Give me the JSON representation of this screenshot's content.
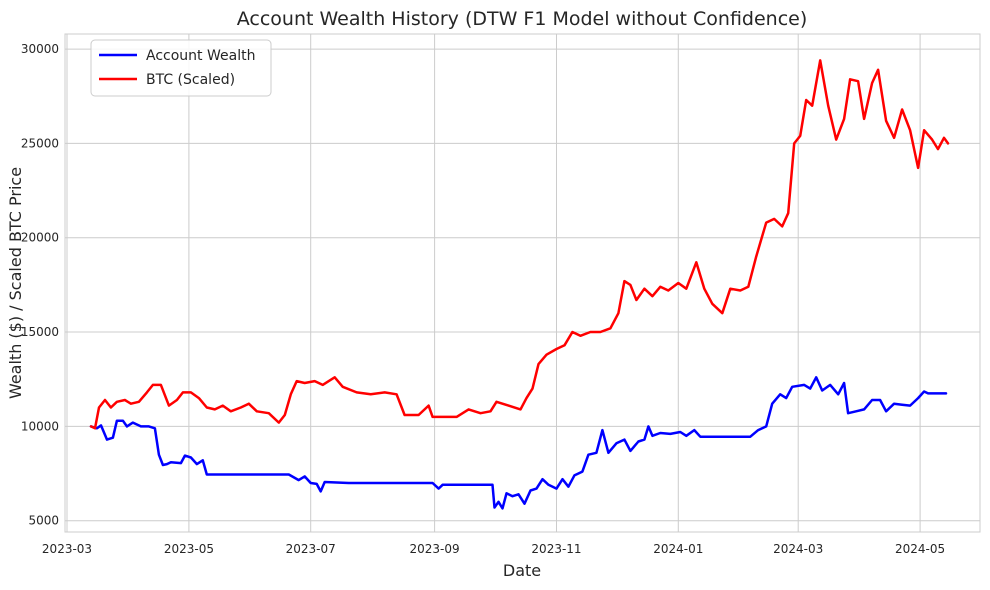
{
  "chart_data": {
    "type": "line",
    "title": "Account Wealth History (DTW F1 Model without Confidence)",
    "xlabel": "Date",
    "ylabel": "Wealth ($) / Scaled BTC Price",
    "x_range": [
      "2023-02-28",
      "2024-05-31"
    ],
    "ylim": [
      4400,
      30800
    ],
    "x_ticks": [
      "2023-03-01",
      "2023-05-01",
      "2023-07-01",
      "2023-09-01",
      "2023-11-01",
      "2024-01-01",
      "2024-03-01",
      "2024-05-01"
    ],
    "x_tick_labels": [
      "2023-03",
      "2023-05",
      "2023-07",
      "2023-09",
      "2023-11",
      "2024-01",
      "2024-03",
      "2024-05"
    ],
    "y_ticks": [
      5000,
      10000,
      15000,
      20000,
      25000,
      30000
    ],
    "y_tick_labels": [
      "5000",
      "10000",
      "15000",
      "20000",
      "25000",
      "30000"
    ],
    "grid": true,
    "legend_position": "top-left",
    "series": [
      {
        "name": "Account Wealth",
        "color": "#0000ff",
        "points": [
          [
            "2023-03-13",
            10000
          ],
          [
            "2023-03-16",
            9900
          ],
          [
            "2023-03-18",
            10050
          ],
          [
            "2023-03-21",
            9300
          ],
          [
            "2023-03-24",
            9400
          ],
          [
            "2023-03-26",
            10300
          ],
          [
            "2023-03-29",
            10300
          ],
          [
            "2023-03-31",
            10000
          ],
          [
            "2023-04-03",
            10200
          ],
          [
            "2023-04-07",
            10000
          ],
          [
            "2023-04-11",
            10000
          ],
          [
            "2023-04-14",
            9900
          ],
          [
            "2023-04-16",
            8500
          ],
          [
            "2023-04-18",
            7950
          ],
          [
            "2023-04-20",
            8000
          ],
          [
            "2023-04-22",
            8100
          ],
          [
            "2023-04-27",
            8050
          ],
          [
            "2023-04-29",
            8450
          ],
          [
            "2023-05-02",
            8350
          ],
          [
            "2023-05-05",
            8000
          ],
          [
            "2023-05-08",
            8200
          ],
          [
            "2023-05-10",
            7450
          ],
          [
            "2023-06-20",
            7450
          ],
          [
            "2023-06-25",
            7150
          ],
          [
            "2023-06-28",
            7350
          ],
          [
            "2023-07-01",
            7000
          ],
          [
            "2023-07-04",
            6950
          ],
          [
            "2023-07-06",
            6550
          ],
          [
            "2023-07-08",
            7050
          ],
          [
            "2023-07-20",
            7000
          ],
          [
            "2023-08-31",
            7000
          ],
          [
            "2023-09-03",
            6700
          ],
          [
            "2023-09-05",
            6900
          ],
          [
            "2023-09-30",
            6900
          ],
          [
            "2023-10-01",
            5700
          ],
          [
            "2023-10-03",
            6000
          ],
          [
            "2023-10-05",
            5650
          ],
          [
            "2023-10-07",
            6450
          ],
          [
            "2023-10-10",
            6300
          ],
          [
            "2023-10-13",
            6400
          ],
          [
            "2023-10-16",
            5900
          ],
          [
            "2023-10-19",
            6600
          ],
          [
            "2023-10-22",
            6700
          ],
          [
            "2023-10-25",
            7200
          ],
          [
            "2023-10-28",
            6900
          ],
          [
            "2023-11-01",
            6700
          ],
          [
            "2023-11-04",
            7200
          ],
          [
            "2023-11-07",
            6800
          ],
          [
            "2023-11-10",
            7400
          ],
          [
            "2023-11-14",
            7600
          ],
          [
            "2023-11-17",
            8500
          ],
          [
            "2023-11-21",
            8600
          ],
          [
            "2023-11-24",
            9800
          ],
          [
            "2023-11-27",
            8600
          ],
          [
            "2023-12-01",
            9100
          ],
          [
            "2023-12-05",
            9300
          ],
          [
            "2023-12-08",
            8700
          ],
          [
            "2023-12-12",
            9200
          ],
          [
            "2023-12-15",
            9300
          ],
          [
            "2023-12-17",
            10000
          ],
          [
            "2023-12-19",
            9500
          ],
          [
            "2023-12-23",
            9650
          ],
          [
            "2023-12-28",
            9600
          ],
          [
            "2024-01-02",
            9700
          ],
          [
            "2024-01-05",
            9500
          ],
          [
            "2024-01-09",
            9800
          ],
          [
            "2024-01-12",
            9450
          ],
          [
            "2024-02-06",
            9450
          ],
          [
            "2024-02-10",
            9800
          ],
          [
            "2024-02-14",
            10000
          ],
          [
            "2024-02-17",
            11200
          ],
          [
            "2024-02-21",
            11700
          ],
          [
            "2024-02-24",
            11500
          ],
          [
            "2024-02-27",
            12100
          ],
          [
            "2024-03-04",
            12200
          ],
          [
            "2024-03-07",
            12000
          ],
          [
            "2024-03-10",
            12600
          ],
          [
            "2024-03-13",
            11900
          ],
          [
            "2024-03-17",
            12200
          ],
          [
            "2024-03-21",
            11700
          ],
          [
            "2024-03-24",
            12300
          ],
          [
            "2024-03-26",
            10700
          ],
          [
            "2024-03-30",
            10800
          ],
          [
            "2024-04-03",
            10900
          ],
          [
            "2024-04-07",
            11400
          ],
          [
            "2024-04-11",
            11400
          ],
          [
            "2024-04-14",
            10800
          ],
          [
            "2024-04-18",
            11200
          ],
          [
            "2024-04-22",
            11150
          ],
          [
            "2024-04-26",
            11100
          ],
          [
            "2024-04-30",
            11500
          ],
          [
            "2024-05-03",
            11850
          ],
          [
            "2024-05-05",
            11750
          ],
          [
            "2024-05-14",
            11750
          ]
        ]
      },
      {
        "name": "BTC (Scaled)",
        "color": "#ff0000",
        "points": [
          [
            "2023-03-13",
            10000
          ],
          [
            "2023-03-15",
            9900
          ],
          [
            "2023-03-17",
            11000
          ],
          [
            "2023-03-20",
            11400
          ],
          [
            "2023-03-23",
            11000
          ],
          [
            "2023-03-26",
            11300
          ],
          [
            "2023-03-30",
            11400
          ],
          [
            "2023-04-02",
            11200
          ],
          [
            "2023-04-06",
            11300
          ],
          [
            "2023-04-10",
            11800
          ],
          [
            "2023-04-13",
            12200
          ],
          [
            "2023-04-17",
            12200
          ],
          [
            "2023-04-21",
            11100
          ],
          [
            "2023-04-25",
            11400
          ],
          [
            "2023-04-28",
            11800
          ],
          [
            "2023-05-02",
            11800
          ],
          [
            "2023-05-06",
            11500
          ],
          [
            "2023-05-10",
            11000
          ],
          [
            "2023-05-14",
            10900
          ],
          [
            "2023-05-18",
            11100
          ],
          [
            "2023-05-22",
            10800
          ],
          [
            "2023-05-27",
            11000
          ],
          [
            "2023-05-31",
            11200
          ],
          [
            "2023-06-04",
            10800
          ],
          [
            "2023-06-10",
            10700
          ],
          [
            "2023-06-15",
            10200
          ],
          [
            "2023-06-18",
            10600
          ],
          [
            "2023-06-21",
            11700
          ],
          [
            "2023-06-24",
            12400
          ],
          [
            "2023-06-28",
            12300
          ],
          [
            "2023-07-03",
            12400
          ],
          [
            "2023-07-07",
            12200
          ],
          [
            "2023-07-13",
            12600
          ],
          [
            "2023-07-17",
            12100
          ],
          [
            "2023-07-24",
            11800
          ],
          [
            "2023-07-31",
            11700
          ],
          [
            "2023-08-07",
            11800
          ],
          [
            "2023-08-13",
            11700
          ],
          [
            "2023-08-17",
            10600
          ],
          [
            "2023-08-24",
            10600
          ],
          [
            "2023-08-29",
            11100
          ],
          [
            "2023-08-31",
            10500
          ],
          [
            "2023-09-07",
            10500
          ],
          [
            "2023-09-12",
            10500
          ],
          [
            "2023-09-18",
            10900
          ],
          [
            "2023-09-24",
            10700
          ],
          [
            "2023-09-29",
            10800
          ],
          [
            "2023-10-02",
            11300
          ],
          [
            "2023-10-08",
            11100
          ],
          [
            "2023-10-14",
            10900
          ],
          [
            "2023-10-17",
            11500
          ],
          [
            "2023-10-20",
            12000
          ],
          [
            "2023-10-23",
            13300
          ],
          [
            "2023-10-27",
            13800
          ],
          [
            "2023-11-01",
            14100
          ],
          [
            "2023-11-05",
            14300
          ],
          [
            "2023-11-09",
            15000
          ],
          [
            "2023-11-13",
            14800
          ],
          [
            "2023-11-18",
            15000
          ],
          [
            "2023-11-23",
            15000
          ],
          [
            "2023-11-28",
            15200
          ],
          [
            "2023-12-02",
            16000
          ],
          [
            "2023-12-05",
            17700
          ],
          [
            "2023-12-08",
            17500
          ],
          [
            "2023-12-11",
            16700
          ],
          [
            "2023-12-15",
            17300
          ],
          [
            "2023-12-19",
            16900
          ],
          [
            "2023-12-23",
            17400
          ],
          [
            "2023-12-27",
            17200
          ],
          [
            "2024-01-01",
            17600
          ],
          [
            "2024-01-05",
            17300
          ],
          [
            "2024-01-10",
            18700
          ],
          [
            "2024-01-14",
            17300
          ],
          [
            "2024-01-18",
            16500
          ],
          [
            "2024-01-23",
            16000
          ],
          [
            "2024-01-27",
            17300
          ],
          [
            "2024-02-01",
            17200
          ],
          [
            "2024-02-05",
            17400
          ],
          [
            "2024-02-09",
            19000
          ],
          [
            "2024-02-14",
            20800
          ],
          [
            "2024-02-18",
            21000
          ],
          [
            "2024-02-22",
            20600
          ],
          [
            "2024-02-25",
            21300
          ],
          [
            "2024-02-28",
            25000
          ],
          [
            "2024-03-02",
            25400
          ],
          [
            "2024-03-05",
            27300
          ],
          [
            "2024-03-08",
            27000
          ],
          [
            "2024-03-12",
            29400
          ],
          [
            "2024-03-16",
            27000
          ],
          [
            "2024-03-20",
            25200
          ],
          [
            "2024-03-24",
            26300
          ],
          [
            "2024-03-27",
            28400
          ],
          [
            "2024-03-31",
            28300
          ],
          [
            "2024-04-03",
            26300
          ],
          [
            "2024-04-07",
            28200
          ],
          [
            "2024-04-10",
            28900
          ],
          [
            "2024-04-14",
            26200
          ],
          [
            "2024-04-18",
            25300
          ],
          [
            "2024-04-22",
            26800
          ],
          [
            "2024-04-26",
            25700
          ],
          [
            "2024-04-30",
            23700
          ],
          [
            "2024-05-03",
            25700
          ],
          [
            "2024-05-07",
            25200
          ],
          [
            "2024-05-10",
            24700
          ],
          [
            "2024-05-13",
            25300
          ],
          [
            "2024-05-15",
            25000
          ]
        ]
      }
    ]
  }
}
